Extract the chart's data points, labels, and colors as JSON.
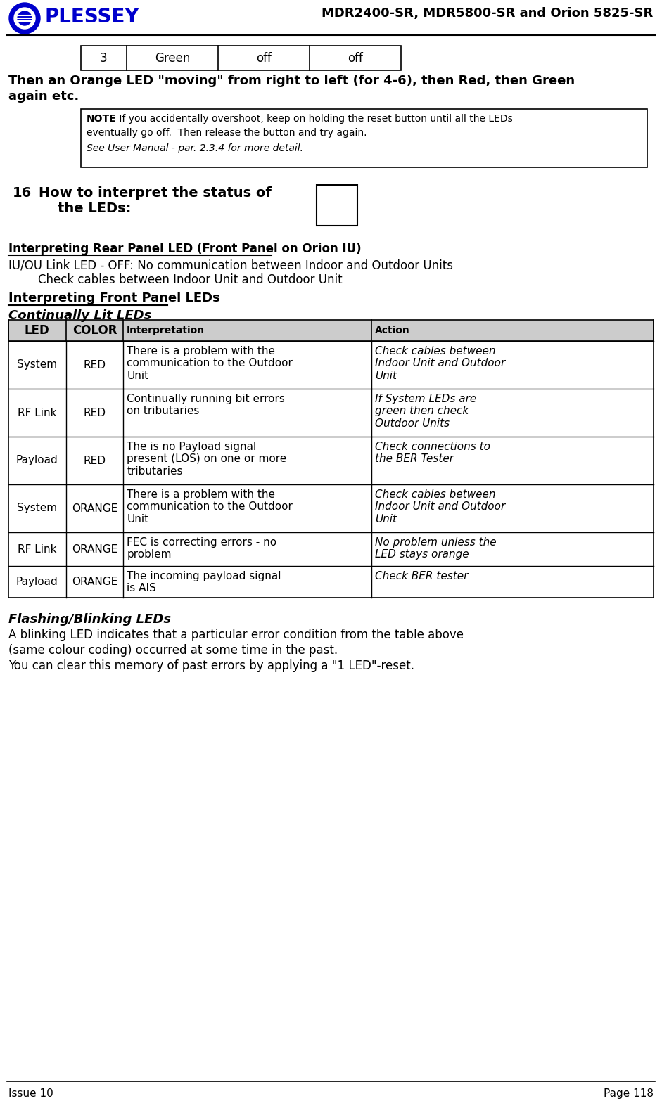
{
  "header_title": "MDR2400-SR, MDR5800-SR and Orion 5825-SR",
  "footer_left": "Issue 10",
  "footer_right": "Page 118",
  "table_row": {
    "col1": "3",
    "col2": "Green",
    "col3": "off",
    "col4": "off"
  },
  "para1_line1": "Then an Orange LED \"moving\" from right to left (for 4-6), then Red, then Green",
  "para1_line2": "again etc.",
  "note_bold": "NOTE",
  "note_text1": " If you accidentally overshoot, keep on holding the reset button until all the LEDs",
  "note_text2": "eventually go off.  Then release the button and try again.",
  "note_text3": "See User Manual - par. 2.3.4 for more detail.",
  "section_num": "16",
  "section_title_line1": "How to interpret the status of",
  "section_title_line2": "    the LEDs:",
  "underline_heading1": "Interpreting Rear Panel LED (Front Panel on Orion IU)",
  "para2a": "IU/OU Link LED - OFF: No communication between Indoor and Outdoor Units",
  "para2b": "        Check cables between Indoor Unit and Outdoor Unit",
  "underline_heading2": "Interpreting Front Panel LEDs",
  "subheading1": "Continually Lit LEDs",
  "table_headers": [
    "LED",
    "COLOR",
    "Interpretation",
    "Action"
  ],
  "table_rows": [
    [
      "System",
      "RED",
      "There is a problem with the\ncommunication to the Outdoor\nUnit",
      "Check cables between\nIndoor Unit and Outdoor\nUnit"
    ],
    [
      "RF Link",
      "RED",
      "Continually running bit errors\non tributaries",
      "If System LEDs are\ngreen then check\nOutdoor Units"
    ],
    [
      "Payload",
      "RED",
      "The is no Payload signal\npresent (LOS) on one or more\ntributaries",
      "Check connections to\nthe BER Tester"
    ],
    [
      "System",
      "ORANGE",
      "There is a problem with the\ncommunication to the Outdoor\nUnit",
      "Check cables between\nIndoor Unit and Outdoor\nUnit"
    ],
    [
      "RF Link",
      "ORANGE",
      "FEC is correcting errors - no\nproblem",
      "No problem unless the\nLED stays orange"
    ],
    [
      "Payload",
      "ORANGE",
      "The incoming payload signal\nis AIS",
      "Check BER tester"
    ]
  ],
  "subheading2": "Flashing/Blinking LEDs",
  "para3_line1": "A blinking LED indicates that a particular error condition from the table above",
  "para3_line2": "(same colour coding) occurred at some time in the past.",
  "para3_line3": "You can clear this memory of past errors by applying a \"1 LED\"-reset.",
  "bg_color": "#ffffff",
  "text_color": "#000000",
  "logo_color": "#0000cc"
}
